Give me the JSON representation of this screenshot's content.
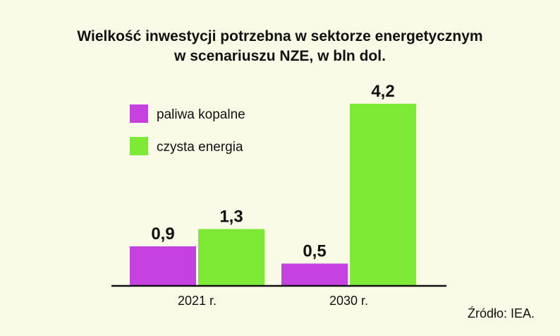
{
  "chart_data": {
    "type": "bar",
    "title": "Wielkość inwestycji potrzebna w sektorze energetycznym",
    "subtitle": "w scenariuszu NZE, w bln dol.",
    "categories": [
      "2021 r.",
      "2030 r."
    ],
    "series": [
      {
        "name": "paliwa kopalne",
        "color": "#c541e0",
        "values": [
          0.9,
          0.5
        ],
        "labels": [
          "0,9",
          "0,5"
        ]
      },
      {
        "name": "czysta energia",
        "color": "#7fea36",
        "values": [
          1.3,
          4.2
        ],
        "labels": [
          "1,3",
          "4,2"
        ]
      }
    ],
    "ylim": [
      0,
      4.2
    ],
    "grid": false,
    "legend": "top-left"
  },
  "source": "Źródło: IEA."
}
